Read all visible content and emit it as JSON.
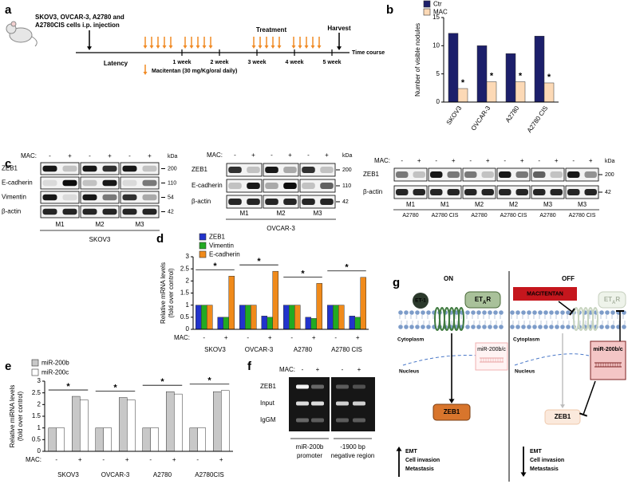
{
  "panel_labels": [
    "a",
    "b",
    "c",
    "d",
    "e",
    "f",
    "g"
  ],
  "timeline": {
    "injection": [
      "SKOV3, OVCAR-3, A2780 and",
      "A2780CIS cells i.p. injection"
    ],
    "treatment": "Treatment",
    "harvest": "Harvest",
    "latency": "Latency",
    "weeks": [
      "1 week",
      "2 week",
      "3 week",
      "4 week",
      "5 week"
    ],
    "axis": "Time course",
    "legend": "Macitentan (30 mg/Kg/oral daily)"
  },
  "chart_data": [
    {
      "type": "bar",
      "ylabel": "Number of visible nodules",
      "categories": [
        "SKOV3",
        "OVCAR-3",
        "A2780",
        "A2780 CIS"
      ],
      "series": [
        {
          "name": "Ctr",
          "color": "#1c1f6b",
          "values": [
            12.2,
            10,
            8.6,
            11.7
          ]
        },
        {
          "name": "MAC",
          "color": "#fcd9b6",
          "values": [
            2.4,
            3.6,
            3.6,
            3.4
          ]
        }
      ],
      "ylim": [
        0,
        15
      ],
      "yticks": [
        0,
        5,
        10,
        15
      ],
      "annotations": [
        "*",
        "*",
        "*",
        "*"
      ]
    },
    {
      "type": "bar",
      "ylabel": [
        "Relative mRNA levels",
        "(fold over control)"
      ],
      "x_label": "MAC:",
      "categories": [
        "-",
        "+",
        "-",
        "+",
        "-",
        "+",
        "-",
        "+"
      ],
      "groups": [
        "SKOV3",
        "OVCAR-3",
        "A2780",
        "A2780 CIS"
      ],
      "series": [
        {
          "name": "ZEB1",
          "color": "#2233cc",
          "values": [
            1,
            0.5,
            1,
            0.55,
            1,
            0.5,
            1,
            0.55
          ]
        },
        {
          "name": "Vimentin",
          "color": "#22aa22",
          "values": [
            1,
            0.5,
            1,
            0.5,
            1,
            0.45,
            1,
            0.5
          ]
        },
        {
          "name": "E-cadherin",
          "color": "#f08a1a",
          "values": [
            1,
            2.2,
            1,
            2.4,
            1,
            1.9,
            1,
            2.15
          ]
        }
      ],
      "ylim": [
        0,
        3
      ],
      "yticks": [
        0,
        0.5,
        1,
        1.5,
        2,
        2.5,
        3
      ],
      "annotations": [
        "*",
        "*",
        "*",
        "*"
      ]
    },
    {
      "type": "bar",
      "ylabel": [
        "Relative miRNA levels",
        "(fold over control)"
      ],
      "x_label": "MAC:",
      "categories": [
        "-",
        "+",
        "-",
        "+",
        "-",
        "+",
        "-",
        "+"
      ],
      "groups": [
        "SKOV3",
        "OVCAR-3",
        "A2780",
        "A2780CIS"
      ],
      "series": [
        {
          "name": "miR-200b",
          "color": "#c8c8c8",
          "values": [
            1,
            2.35,
            1,
            2.3,
            1,
            2.55,
            1,
            2.55
          ]
        },
        {
          "name": "miR-200c",
          "color": "#ffffff",
          "values": [
            1,
            2.2,
            1,
            2.2,
            1,
            2.45,
            1,
            2.6
          ]
        }
      ],
      "ylim": [
        0,
        3
      ],
      "yticks": [
        0,
        0.5,
        1,
        1.5,
        2,
        2.5,
        3
      ],
      "annotations": [
        "*",
        "*",
        "*",
        "*"
      ]
    }
  ],
  "blots": [
    {
      "mac_label": "MAC:",
      "signs": [
        "-",
        "+",
        "-",
        "+",
        "-",
        "+"
      ],
      "kda_label": "kDa",
      "rows": [
        {
          "name": "ZEB1",
          "kda": 200
        },
        {
          "name": "E-cadherin",
          "kda": 110
        },
        {
          "name": "Vimentin",
          "kda": 54
        },
        {
          "name": "β-actin",
          "kda": 42
        }
      ],
      "groups": [
        "M1",
        "M2",
        "M3"
      ],
      "cell_line": "SKOV3"
    },
    {
      "mac_label": "MAC:",
      "signs": [
        "-",
        "+",
        "-",
        "+",
        "-",
        "+"
      ],
      "kda_label": "kDa",
      "rows": [
        {
          "name": "ZEB1",
          "kda": 200
        },
        {
          "name": "E-cadherin",
          "kda": 110
        },
        {
          "name": "β-actin",
          "kda": 42
        }
      ],
      "groups": [
        "M1",
        "M2",
        "M3"
      ],
      "cell_line": "OVCAR-3"
    },
    {
      "mac_label": "MAC:",
      "signs": [
        "-",
        "+",
        "-",
        "+",
        "-",
        "+",
        "-",
        "+",
        "-",
        "+",
        "-",
        "+"
      ],
      "kda_label": "kDa",
      "rows": [
        {
          "name": "ZEB1",
          "kda": 200
        },
        {
          "name": "β-actin",
          "kda": 42
        }
      ],
      "groups": [
        "M1",
        "M1",
        "M2",
        "M2",
        "M3",
        "M3"
      ],
      "sublabels": [
        "A2780",
        "A2780 CIS",
        "A2780",
        "A2780 CIS",
        "A2780",
        "A2780 CIS"
      ]
    }
  ],
  "chip": {
    "mac_label": "MAC:",
    "signs": [
      "-",
      "+",
      "-",
      "+"
    ],
    "rows": [
      "ZEB1",
      "Input",
      "IgGM"
    ],
    "regions": [
      [
        "miR-200b",
        "promoter"
      ],
      [
        "-1900 bp",
        "negative region"
      ]
    ]
  },
  "model": {
    "on": {
      "title": "ON",
      "ligand": "ET-1",
      "receptor": [
        "ET",
        "A",
        "R"
      ],
      "cytoplasm": "Cytoplasm",
      "nucleus": "Nucleus",
      "mirna": "miR-200b/c",
      "zeb1": "ZEB1",
      "outcomes": [
        "EMT",
        "Cell invasion",
        "Metastasis"
      ]
    },
    "off": {
      "title": "OFF",
      "drug": "MACITENTAN",
      "receptor": [
        "ET",
        "A",
        "R"
      ],
      "cytoplasm": "Cytoplasm",
      "nucleus": "Nucleus",
      "mirna": "miR-200b/c",
      "zeb1": "ZEB1",
      "outcomes": [
        "EMT",
        "Cell invasion",
        "Metastasis"
      ]
    }
  }
}
